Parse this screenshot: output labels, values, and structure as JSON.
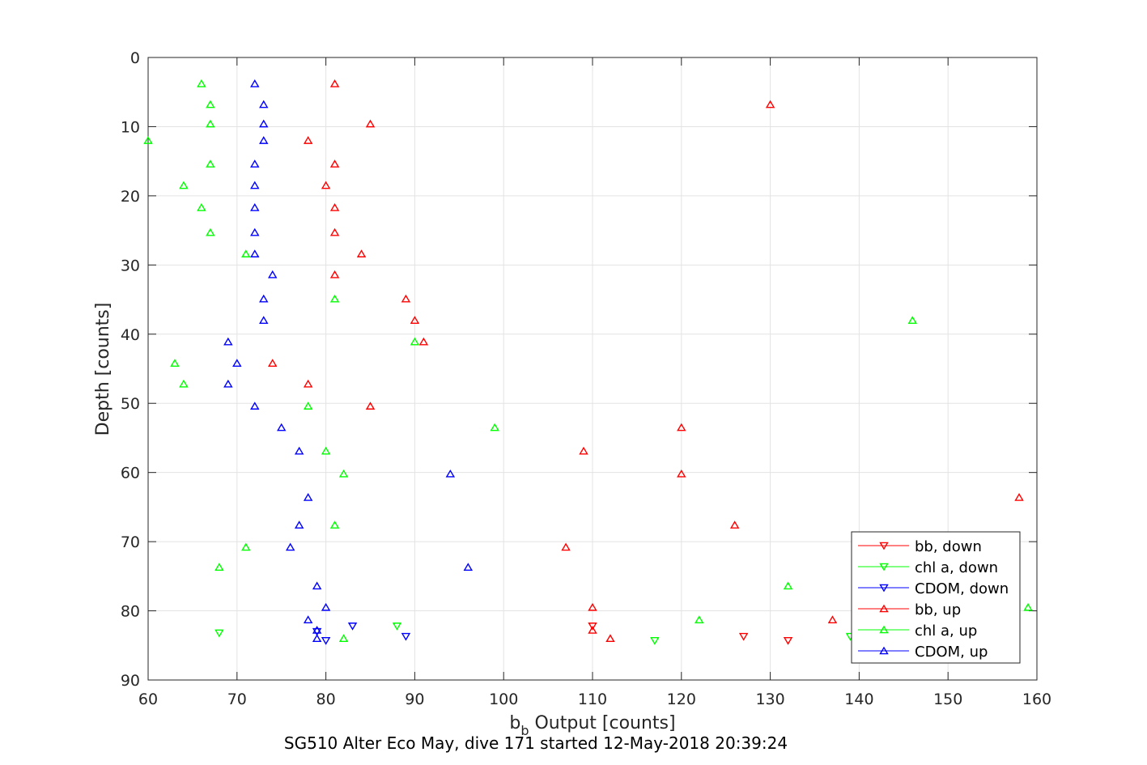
{
  "caption": "SG510 Alter Eco May, dive 171 started 12-May-2018 20:39:24",
  "chart_data": {
    "type": "scatter",
    "title": "",
    "xlabel_main": "b",
    "xlabel_sub": "b",
    "xlabel_rest": " Output [counts]",
    "ylabel": "Depth [counts]",
    "xlim": [
      60,
      160
    ],
    "ylim": [
      0,
      90
    ],
    "y_reversed": true,
    "grid": true,
    "legend_position": "bottom-right",
    "xticks": [
      60,
      70,
      80,
      90,
      100,
      110,
      120,
      130,
      140,
      150,
      160
    ],
    "yticks": [
      0,
      10,
      20,
      30,
      40,
      50,
      60,
      70,
      80,
      90
    ],
    "series": [
      {
        "name": "bb, down",
        "color": "#ff0000",
        "marker": "triangle-down",
        "points": [
          [
            110,
            82.2
          ],
          [
            127,
            83.7
          ],
          [
            132,
            84.3
          ]
        ]
      },
      {
        "name": "chl a, down",
        "color": "#00ff00",
        "marker": "triangle-down",
        "points": [
          [
            68,
            83.2
          ],
          [
            88,
            82.2
          ],
          [
            117,
            84.3
          ],
          [
            139,
            83.7
          ]
        ]
      },
      {
        "name": "CDOM, down",
        "color": "#0000ff",
        "marker": "triangle-down",
        "points": [
          [
            79,
            83.0
          ],
          [
            83,
            82.2
          ],
          [
            89,
            83.7
          ],
          [
            80,
            84.3
          ]
        ]
      },
      {
        "name": "bb, up",
        "color": "#ff0000",
        "marker": "triangle-up",
        "points": [
          [
            81,
            3.8
          ],
          [
            130,
            6.8
          ],
          [
            85,
            9.6
          ],
          [
            78,
            12.0
          ],
          [
            81,
            15.4
          ],
          [
            80,
            18.5
          ],
          [
            81,
            21.7
          ],
          [
            81,
            25.3
          ],
          [
            84,
            28.4
          ],
          [
            81,
            31.4
          ],
          [
            89,
            34.9
          ],
          [
            90,
            38.0
          ],
          [
            91,
            41.1
          ],
          [
            74,
            44.2
          ],
          [
            78,
            47.2
          ],
          [
            85,
            50.4
          ],
          [
            120,
            53.5
          ],
          [
            109,
            56.9
          ],
          [
            120,
            60.2
          ],
          [
            158,
            63.6
          ],
          [
            126,
            67.6
          ],
          [
            107,
            70.8
          ],
          [
            110,
            79.5
          ],
          [
            137,
            81.3
          ],
          [
            110,
            82.8
          ],
          [
            112,
            84.0
          ]
        ]
      },
      {
        "name": "chl a, up",
        "color": "#00ff00",
        "marker": "triangle-up",
        "points": [
          [
            66,
            3.8
          ],
          [
            67,
            6.8
          ],
          [
            67,
            9.6
          ],
          [
            60,
            12.0
          ],
          [
            67,
            15.4
          ],
          [
            64,
            18.5
          ],
          [
            66,
            21.7
          ],
          [
            67,
            25.3
          ],
          [
            71,
            28.4
          ],
          [
            81,
            34.9
          ],
          [
            146,
            38.0
          ],
          [
            90,
            41.1
          ],
          [
            63,
            44.2
          ],
          [
            64,
            47.2
          ],
          [
            78,
            50.4
          ],
          [
            99,
            53.5
          ],
          [
            80,
            56.9
          ],
          [
            82,
            60.2
          ],
          [
            81,
            67.6
          ],
          [
            71,
            70.8
          ],
          [
            68,
            73.7
          ],
          [
            132,
            76.4
          ],
          [
            159,
            79.5
          ],
          [
            122,
            81.3
          ],
          [
            82,
            84.0
          ]
        ]
      },
      {
        "name": "CDOM, up",
        "color": "#0000ff",
        "marker": "triangle-up",
        "points": [
          [
            72,
            3.8
          ],
          [
            73,
            6.8
          ],
          [
            73,
            9.6
          ],
          [
            73,
            12.0
          ],
          [
            72,
            15.4
          ],
          [
            72,
            18.5
          ],
          [
            72,
            21.7
          ],
          [
            72,
            25.3
          ],
          [
            72,
            28.4
          ],
          [
            74,
            31.4
          ],
          [
            73,
            34.9
          ],
          [
            73,
            38.0
          ],
          [
            69,
            41.1
          ],
          [
            70,
            44.2
          ],
          [
            69,
            47.2
          ],
          [
            72,
            50.4
          ],
          [
            75,
            53.5
          ],
          [
            77,
            56.9
          ],
          [
            94,
            60.2
          ],
          [
            78,
            63.6
          ],
          [
            77,
            67.6
          ],
          [
            76,
            70.8
          ],
          [
            96,
            73.7
          ],
          [
            79,
            76.4
          ],
          [
            80,
            79.5
          ],
          [
            78,
            81.3
          ],
          [
            79,
            82.8
          ],
          [
            79,
            84.0
          ]
        ]
      }
    ]
  }
}
